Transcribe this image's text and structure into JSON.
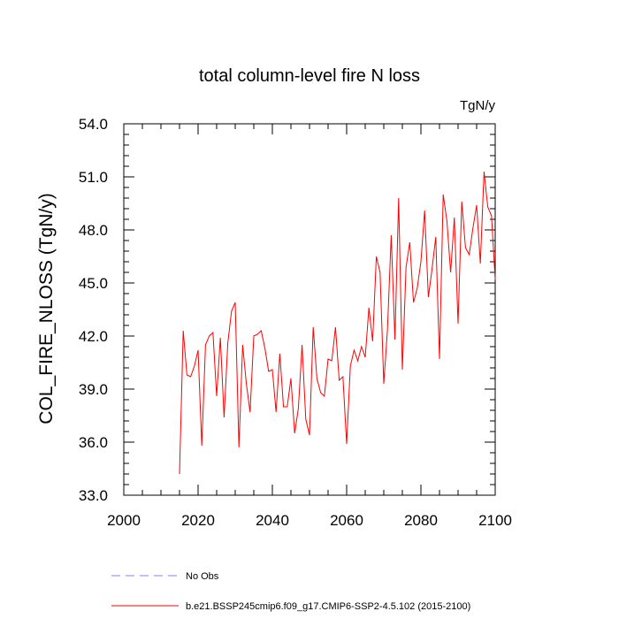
{
  "chart_data": {
    "type": "line",
    "title": "total column-level fire N loss",
    "units": "TgN/y",
    "ylabel": "COL_FIRE_NLOSS  (TgN/y)",
    "xlabel": "",
    "xlim": [
      2000,
      2100
    ],
    "ylim": [
      33.0,
      54.0
    ],
    "xticks": [
      "2000",
      "2020",
      "2040",
      "2060",
      "2080",
      "2100"
    ],
    "yticks": [
      "33.0",
      "36.0",
      "39.0",
      "42.0",
      "45.0",
      "48.0",
      "51.0",
      "54.0"
    ],
    "grid": false,
    "legend_position": "bottom",
    "series": [
      {
        "name": "No Obs",
        "color": "#8080ff",
        "dash": "dashed",
        "x": [],
        "y": []
      },
      {
        "name": "b.e21.BSSP245cmip6.f09_g17.CMIP6-SSP2-4.5.102 (2015-2100)",
        "color": "#ff0000",
        "dash": "solid",
        "x": [
          2015,
          2016,
          2017,
          2018,
          2019,
          2020,
          2021,
          2022,
          2023,
          2024,
          2025,
          2026,
          2027,
          2028,
          2029,
          2030,
          2031,
          2032,
          2033,
          2034,
          2035,
          2036,
          2037,
          2038,
          2039,
          2040,
          2041,
          2042,
          2043,
          2044,
          2045,
          2046,
          2047,
          2048,
          2049,
          2050,
          2051,
          2052,
          2053,
          2054,
          2055,
          2056,
          2057,
          2058,
          2059,
          2060,
          2061,
          2062,
          2063,
          2064,
          2065,
          2066,
          2067,
          2068,
          2069,
          2070,
          2071,
          2072,
          2073,
          2074,
          2075,
          2076,
          2077,
          2078,
          2079,
          2080,
          2081,
          2082,
          2083,
          2084,
          2085,
          2086,
          2087,
          2088,
          2089,
          2090,
          2091,
          2092,
          2093,
          2094,
          2095,
          2096,
          2097,
          2098,
          2099,
          2100
        ],
        "y": [
          34.2,
          42.3,
          39.8,
          39.7,
          40.3,
          41.2,
          35.8,
          41.5,
          42.0,
          42.2,
          38.6,
          41.9,
          37.4,
          41.6,
          43.4,
          43.9,
          35.7,
          41.5,
          39.3,
          37.7,
          42.0,
          42.1,
          42.3,
          41.3,
          40.0,
          40.1,
          37.7,
          41.0,
          38.0,
          38.0,
          39.6,
          36.5,
          37.9,
          41.5,
          37.3,
          36.4,
          42.5,
          39.6,
          38.8,
          38.6,
          40.7,
          40.6,
          42.5,
          39.5,
          39.7,
          35.9,
          40.3,
          41.2,
          40.6,
          41.4,
          40.8,
          43.6,
          41.7,
          46.5,
          45.6,
          39.3,
          42.4,
          47.7,
          41.8,
          49.8,
          40.1,
          45.9,
          47.3,
          43.9,
          44.7,
          46.2,
          49.1,
          44.2,
          45.8,
          47.6,
          40.7,
          50.0,
          48.5,
          45.6,
          48.7,
          42.7,
          49.6,
          47.0,
          46.6,
          48.1,
          49.4,
          46.1,
          51.3,
          49.3,
          48.8,
          45.2
        ]
      }
    ]
  }
}
